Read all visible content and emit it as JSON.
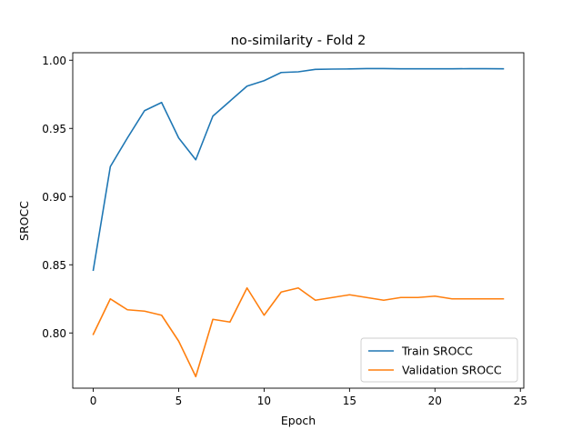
{
  "chart_data": {
    "type": "line",
    "title": "no-similarity - Fold 2",
    "xlabel": "Epoch",
    "ylabel": "SROCC",
    "xlim": [
      -1.2,
      25.2
    ],
    "ylim": [
      0.7595,
      1.0055
    ],
    "xticks": [
      0,
      5,
      10,
      15,
      20,
      25
    ],
    "xtick_labels": [
      "0",
      "5",
      "10",
      "15",
      "20",
      "25"
    ],
    "yticks": [
      0.8,
      0.85,
      0.9,
      0.95,
      1.0
    ],
    "ytick_labels": [
      "0.80",
      "0.85",
      "0.90",
      "0.95",
      "1.00"
    ],
    "grid": false,
    "legend_position": "lower-right",
    "x": [
      0,
      1,
      2,
      3,
      4,
      5,
      6,
      7,
      8,
      9,
      10,
      11,
      12,
      13,
      14,
      15,
      16,
      17,
      18,
      19,
      20,
      21,
      22,
      23,
      24
    ],
    "series": [
      {
        "name": "Train SROCC",
        "color": "#1f77b4",
        "values": [
          0.846,
          0.922,
          0.943,
          0.963,
          0.969,
          0.943,
          0.927,
          0.959,
          0.97,
          0.981,
          0.985,
          0.991,
          0.9915,
          0.9933,
          0.9935,
          0.9936,
          0.9939,
          0.9939,
          0.9937,
          0.9937,
          0.9937,
          0.9937,
          0.9938,
          0.9938,
          0.9937
        ]
      },
      {
        "name": "Validation SROCC",
        "color": "#ff7f0e",
        "values": [
          0.799,
          0.825,
          0.817,
          0.816,
          0.813,
          0.794,
          0.768,
          0.81,
          0.808,
          0.833,
          0.813,
          0.83,
          0.833,
          0.824,
          0.826,
          0.828,
          0.826,
          0.824,
          0.826,
          0.826,
          0.827,
          0.825,
          0.825,
          0.825,
          0.825
        ]
      }
    ]
  }
}
